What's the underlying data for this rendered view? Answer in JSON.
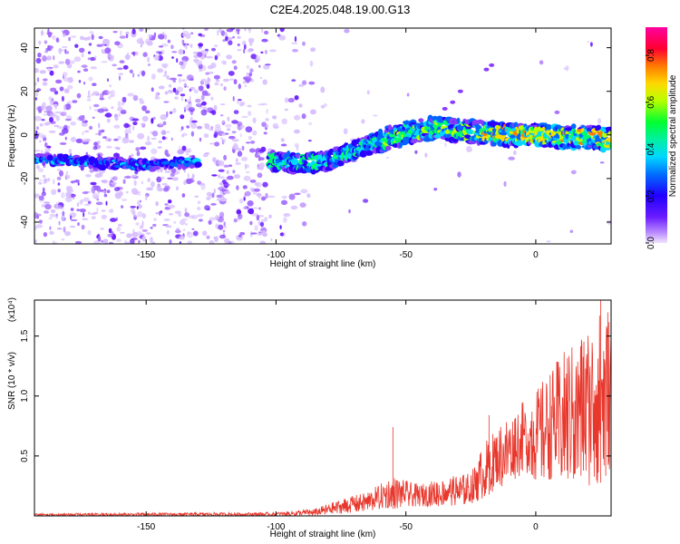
{
  "chart_data": [
    {
      "type": "heatmap",
      "title": "C2E4.2025.048.19.00.G13",
      "xlabel": "Height of straight line (km)",
      "ylabel": "Frequency (Hz)",
      "xlim": [
        -193,
        29
      ],
      "ylim": [
        -50,
        49
      ],
      "xticks": [
        -150,
        -100,
        -50,
        0
      ],
      "yticks": [
        -40,
        -20,
        0,
        20,
        40
      ],
      "colorbar": {
        "label": "Normalized spectral amplitude",
        "range": [
          0.0,
          0.92
        ],
        "ticks": [
          0.0,
          0.2,
          0.4,
          0.6,
          0.8
        ],
        "tick_labels": [
          "0.0",
          "0.2",
          "0.4",
          "0.6",
          "0.8"
        ],
        "colors": [
          "#f0e4ff",
          "#8a3cff",
          "#2a00ff",
          "#0066ff",
          "#00d8ff",
          "#00ff66",
          "#b8ff00",
          "#ffd800",
          "#ff7a00",
          "#ff0030",
          "#ff00a0"
        ]
      },
      "track": [
        {
          "x": -193,
          "y": -11
        },
        {
          "x": -180,
          "y": -12
        },
        {
          "x": -165,
          "y": -13
        },
        {
          "x": -150,
          "y": -14
        },
        {
          "x": -140,
          "y": -13
        },
        {
          "x": -125,
          "y": -12
        },
        {
          "x": -102,
          "y": -12
        },
        {
          "x": -90,
          "y": -13
        },
        {
          "x": -80,
          "y": -12
        },
        {
          "x": -70,
          "y": -7
        },
        {
          "x": -60,
          "y": -3
        },
        {
          "x": -50,
          "y": 1
        },
        {
          "x": -40,
          "y": 3
        },
        {
          "x": -30,
          "y": 2
        },
        {
          "x": -20,
          "y": 1
        },
        {
          "x": -10,
          "y": 0
        },
        {
          "x": 0,
          "y": 0
        },
        {
          "x": 10,
          "y": -1
        },
        {
          "x": 20,
          "y": -1
        },
        {
          "x": 29,
          "y": -2
        }
      ]
    },
    {
      "type": "line",
      "xlabel": "Height of straight line (km)",
      "ylabel": "SNR (10 * v/v)",
      "yunit": "(x10⁴)",
      "xlim": [
        -193,
        29
      ],
      "ylim": [
        0,
        1.8
      ],
      "xticks": [
        -150,
        -100,
        -50,
        0
      ],
      "yticks": [
        0.5,
        1.0,
        1.5
      ],
      "ytick_labels": [
        "0.5",
        "1.0",
        "1.5"
      ],
      "series": [
        {
          "color": "#e8372c",
          "envelope": [
            {
              "x": -193,
              "lo": 0.0,
              "hi": 0.02
            },
            {
              "x": -100,
              "lo": 0.0,
              "hi": 0.03
            },
            {
              "x": -85,
              "lo": 0.0,
              "hi": 0.06
            },
            {
              "x": -75,
              "lo": 0.02,
              "hi": 0.14
            },
            {
              "x": -65,
              "lo": 0.04,
              "hi": 0.2
            },
            {
              "x": -55,
              "lo": 0.06,
              "hi": 0.33
            },
            {
              "x": -45,
              "lo": 0.08,
              "hi": 0.26
            },
            {
              "x": -35,
              "lo": 0.08,
              "hi": 0.32
            },
            {
              "x": -25,
              "lo": 0.1,
              "hi": 0.36
            },
            {
              "x": -20,
              "lo": 0.15,
              "hi": 0.6
            },
            {
              "x": -15,
              "lo": 0.22,
              "hi": 0.75
            },
            {
              "x": -10,
              "lo": 0.28,
              "hi": 0.85
            },
            {
              "x": -5,
              "lo": 0.35,
              "hi": 0.95
            },
            {
              "x": 0,
              "lo": 0.3,
              "hi": 1.05
            },
            {
              "x": 10,
              "lo": 0.3,
              "hi": 1.35
            },
            {
              "x": 20,
              "lo": 0.25,
              "hi": 1.6
            },
            {
              "x": 29,
              "lo": 0.3,
              "hi": 1.8
            }
          ],
          "peaks": [
            {
              "x": -55,
              "y": 0.74
            },
            {
              "x": -18,
              "y": 0.84
            },
            {
              "x": 25,
              "y": 1.8
            }
          ]
        }
      ]
    }
  ]
}
